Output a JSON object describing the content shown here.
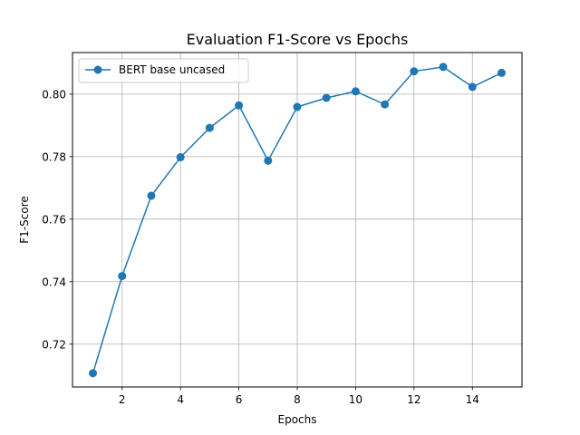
{
  "chart_data": {
    "type": "line",
    "title": "Evaluation F1-Score vs Epochs",
    "xlabel": "Epochs",
    "ylabel": "F1-Score",
    "xlim": [
      0.3,
      15.7
    ],
    "ylim": [
      0.7063,
      0.8133
    ],
    "xticks": [
      2,
      4,
      6,
      8,
      10,
      12,
      14
    ],
    "xtick_labels": [
      "2",
      "4",
      "6",
      "8",
      "10",
      "12",
      "14"
    ],
    "yticks": [
      0.72,
      0.74,
      0.76,
      0.78,
      0.8
    ],
    "ytick_labels": [
      "0.72",
      "0.74",
      "0.76",
      "0.78",
      "0.80"
    ],
    "grid": true,
    "legend_position": "top-left",
    "series": [
      {
        "name": "BERT base uncased",
        "color": "#1f77b4",
        "marker": "circle",
        "x": [
          1,
          2,
          3,
          4,
          5,
          6,
          7,
          8,
          9,
          10,
          11,
          12,
          13,
          14,
          15
        ],
        "values": [
          0.7107,
          0.7418,
          0.7675,
          0.7798,
          0.7892,
          0.7964,
          0.7787,
          0.7959,
          0.7988,
          0.8009,
          0.7967,
          0.8073,
          0.8087,
          0.8023,
          0.8068
        ]
      }
    ]
  }
}
